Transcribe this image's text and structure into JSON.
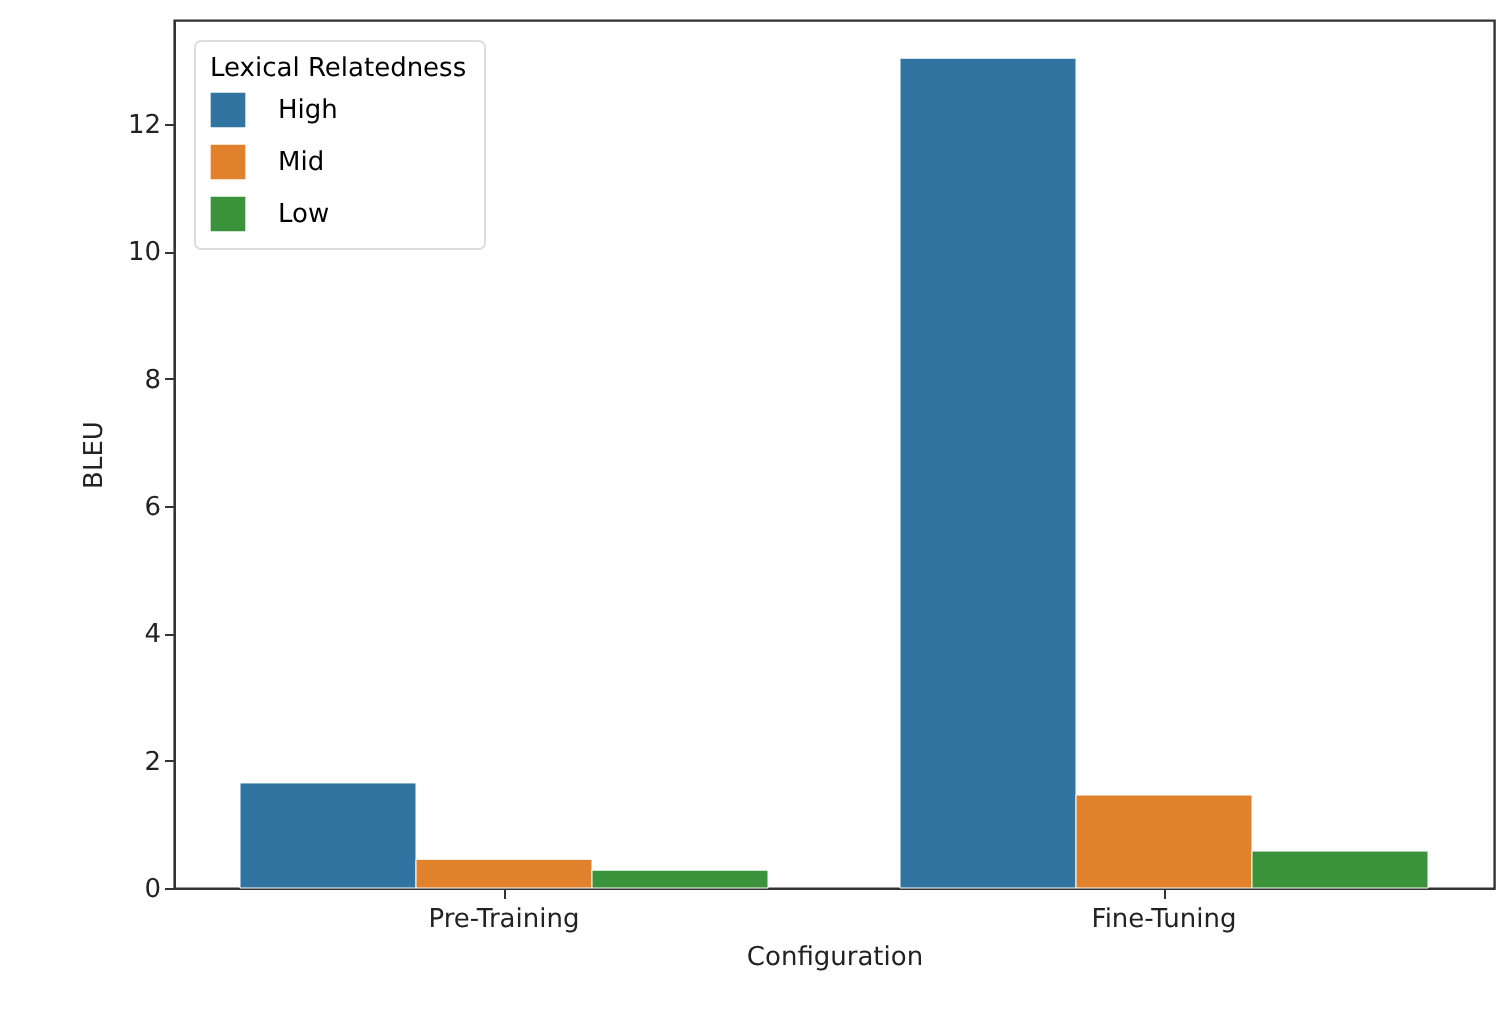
{
  "chart_data": {
    "type": "bar",
    "xlabel": "Configuration",
    "ylabel": "BLEU",
    "legend_title": "Lexical Relatedness",
    "legend": "top left",
    "categories": [
      "Pre-Training",
      "Fine-Tuning"
    ],
    "series": [
      {
        "name": "High",
        "color": "#3274a1",
        "values": [
          1.65,
          13.03
        ]
      },
      {
        "name": "Mid",
        "color": "#e1812c",
        "values": [
          0.45,
          1.46
        ]
      },
      {
        "name": "Low",
        "color": "#3a923a",
        "values": [
          0.28,
          0.58
        ]
      }
    ],
    "ylim": [
      0,
      13.63
    ],
    "yticks": [
      0,
      2,
      4,
      6,
      8,
      10,
      12
    ]
  }
}
